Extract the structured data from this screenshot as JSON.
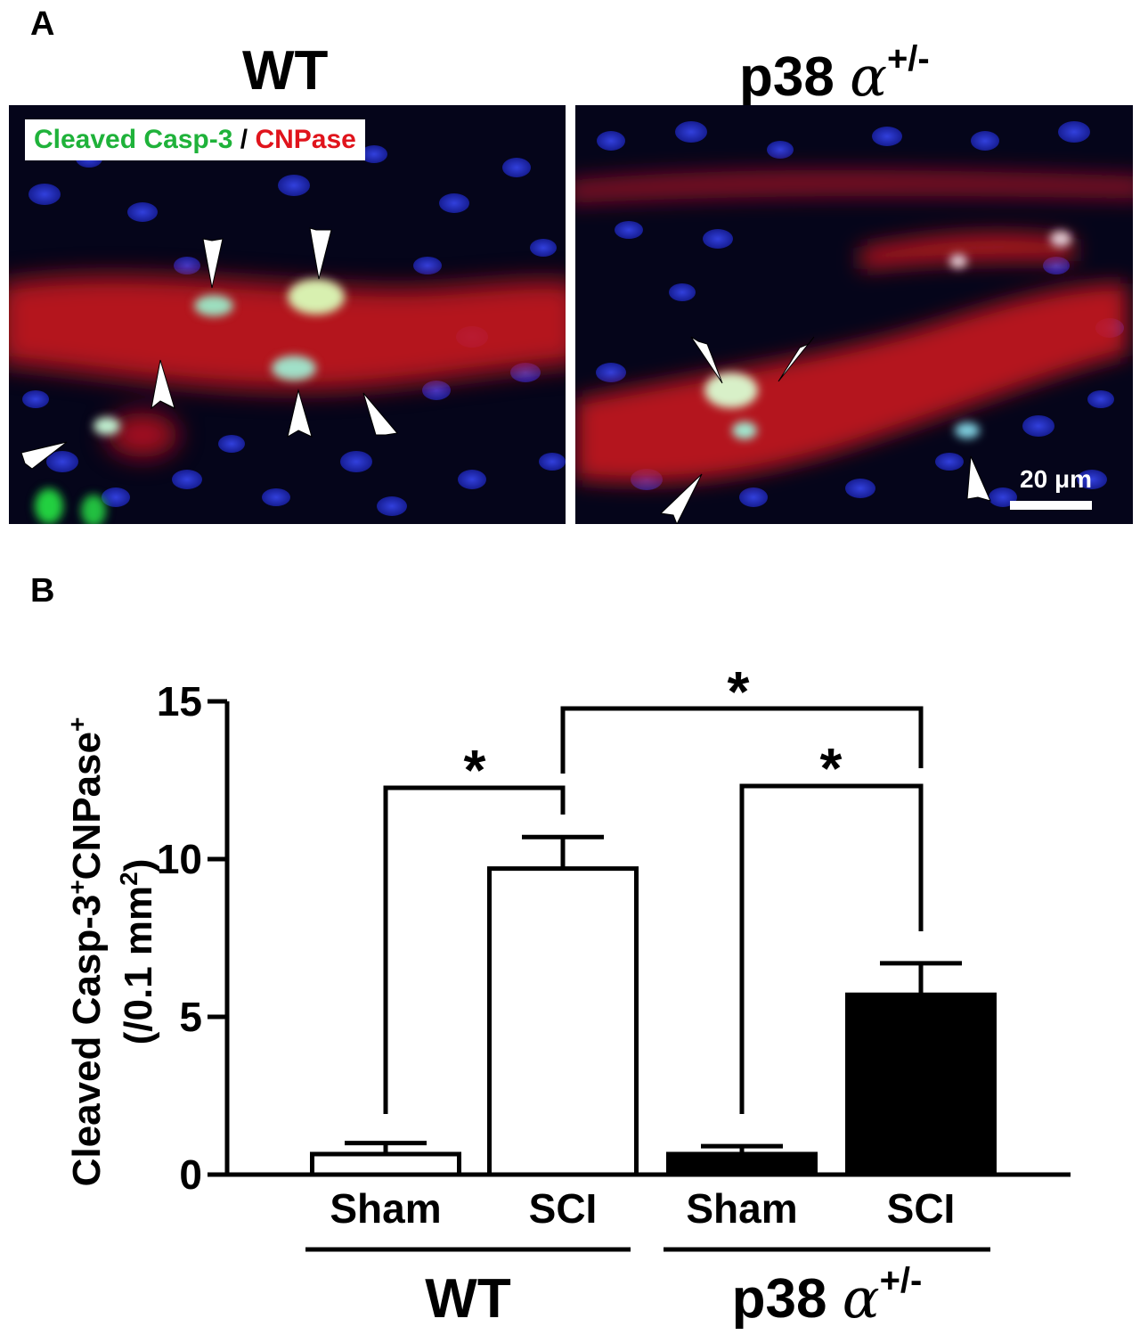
{
  "panel_a": {
    "letter": "A",
    "left_title": "WT",
    "right_title_main": "p38 ",
    "right_title_greek": "α",
    "right_title_sup": "+/-",
    "stain_legend": {
      "green_text": "Cleaved Casp-3",
      "separator": " / ",
      "red_text": "CNPase"
    },
    "scale_bar_label": "20 μm",
    "colors": {
      "green": "#1fb23a",
      "red": "#e0141c",
      "nuclei": "#1f2ccf"
    }
  },
  "panel_b": {
    "letter": "B"
  },
  "chart_data": {
    "type": "bar",
    "ylabel_line1_parts": [
      "Cleaved Casp-3",
      "+",
      "CNPase",
      "+"
    ],
    "ylabel_line2_parts": [
      "(/0.1 mm",
      "2",
      ")"
    ],
    "ylim": [
      0,
      15
    ],
    "yticks": [
      0,
      5,
      10,
      15
    ],
    "categories": [
      "Sham",
      "SCI",
      "Sham",
      "SCI"
    ],
    "groups": [
      {
        "name": "WT",
        "name_greek": "",
        "name_sup": "",
        "fill": "#ffffff"
      },
      {
        "name": "p38 ",
        "name_greek": "α",
        "name_sup": "+/-",
        "fill": "#000000"
      }
    ],
    "values": [
      0.65,
      9.7,
      0.65,
      5.7
    ],
    "errors": [
      0.35,
      1.0,
      0.25,
      1.0
    ],
    "bar_fill": [
      "#ffffff",
      "#ffffff",
      "#000000",
      "#000000"
    ],
    "significance": [
      {
        "from": 0,
        "to": 1,
        "label": "*"
      },
      {
        "from": 2,
        "to": 3,
        "label": "*"
      },
      {
        "from": 1,
        "to": 3,
        "label": "*"
      }
    ],
    "grid": false
  }
}
